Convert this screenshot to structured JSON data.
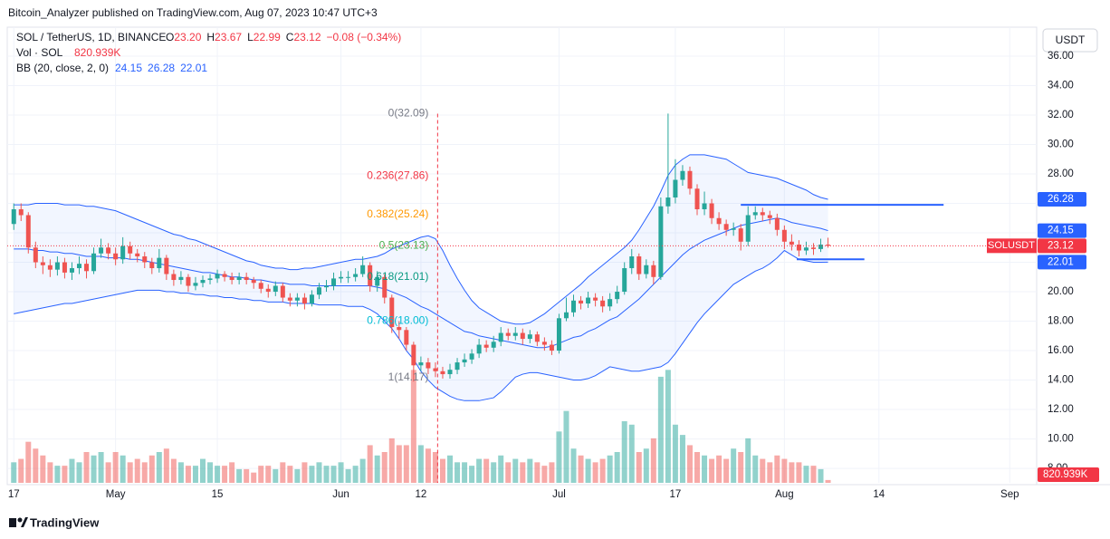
{
  "header": "Bitcoin_Analyzer published on TradingView.com, Aug 07, 2023 10:47 UTC+3",
  "footer": "TradingView",
  "currency_button": "USDT",
  "legend": {
    "symbol": "SOL / TetherUS, 1D, BINANCE",
    "ohlc": [
      {
        "key": "O",
        "text": "23.20"
      },
      {
        "key": "H",
        "text": "23.67"
      },
      {
        "key": "L",
        "text": "22.99"
      },
      {
        "key": "C",
        "text": "23.12"
      }
    ],
    "change": "−0.08 (−0.34%)",
    "volume_name": "Vol · SOL",
    "volume_text": "820.939K",
    "bb_name": "BB (20, close, 2, 0)",
    "bb_values": [
      "24.15",
      "26.28",
      "22.01"
    ]
  },
  "chart_data": {
    "type": "candlestick",
    "up_color": "#26a69a",
    "down_color": "#ef5350",
    "xlim": [
      -0.9,
      140.7
    ],
    "xticks": [
      {
        "value": 0,
        "label": "17"
      },
      {
        "value": 14,
        "label": "May"
      },
      {
        "value": 28,
        "label": "15"
      },
      {
        "value": 45,
        "label": "Jun"
      },
      {
        "value": 56,
        "label": "12"
      },
      {
        "value": 75,
        "label": "Jul"
      },
      {
        "value": 91,
        "label": "17"
      },
      {
        "value": 106,
        "label": "Aug"
      },
      {
        "value": 119,
        "label": "14"
      },
      {
        "value": 137,
        "label": "Sep"
      }
    ],
    "ylim": [
      7.02,
      37.66
    ],
    "yticks": [
      {
        "value": 8,
        "label": "8.00"
      },
      {
        "value": 10,
        "label": "10.00"
      },
      {
        "value": 12,
        "label": "12.00"
      },
      {
        "value": 14,
        "label": "14.00"
      },
      {
        "value": 16,
        "label": "16.00"
      },
      {
        "value": 18,
        "label": "18.00"
      },
      {
        "value": 20,
        "label": "20.00"
      },
      {
        "value": 22,
        "label": "22.00"
      },
      {
        "value": 24,
        "label": "24.00"
      },
      {
        "value": 26,
        "label": "26.00"
      },
      {
        "value": 28,
        "label": "28.00"
      },
      {
        "value": 30,
        "label": "30.00"
      },
      {
        "value": 32,
        "label": "32.00"
      },
      {
        "value": 34,
        "label": "34.00"
      },
      {
        "value": 36,
        "label": "36.00"
      }
    ],
    "grid": true,
    "open": [
      24.6,
      25.6,
      25.2,
      23.0,
      22.0,
      21.8,
      21.5,
      22.0,
      21.3,
      21.6,
      21.9,
      21.4,
      22.6,
      23.0,
      22.6,
      22.2,
      23.1,
      22.6,
      22.4,
      22.0,
      21.6,
      22.3,
      21.2,
      20.8,
      21.0,
      20.4,
      20.6,
      20.8,
      20.9,
      21.2,
      21.0,
      20.8,
      21.0,
      20.8,
      20.6,
      20.2,
      20.0,
      20.4,
      19.6,
      19.4,
      19.6,
      19.2,
      19.8,
      20.3,
      20.4,
      20.9,
      21.0,
      21.0,
      21.2,
      21.8,
      20.4,
      21.0,
      19.6,
      17.6,
      17.4,
      16.4,
      15.0,
      15.2,
      14.8,
      14.6,
      14.4,
      14.7,
      15.2,
      15.4,
      15.8,
      16.4,
      16.2,
      16.6,
      17.2,
      17.0,
      17.2,
      16.8,
      17.1,
      16.6,
      16.4,
      16.0,
      18.2,
      18.6,
      19.4,
      19.2,
      19.6,
      19.4,
      19.0,
      19.5,
      20.0,
      21.6,
      22.4,
      21.2,
      21.8,
      21.0,
      25.8,
      26.4,
      27.6,
      28.2,
      27.0,
      25.6,
      26.0,
      25.0,
      24.6,
      24.2,
      24.3,
      23.4,
      25.2,
      25.4,
      25.2,
      25.0,
      24.2,
      23.4,
      23.2,
      22.8,
      23.0,
      22.9,
      23.2
    ],
    "high": [
      26.0,
      26.0,
      25.4,
      23.4,
      22.4,
      22.2,
      22.4,
      22.3,
      22.0,
      22.4,
      22.2,
      23.0,
      23.6,
      23.3,
      23.0,
      23.7,
      23.4,
      22.9,
      22.7,
      22.3,
      22.9,
      22.5,
      21.5,
      21.4,
      21.2,
      21.0,
      21.1,
      21.2,
      21.5,
      21.4,
      21.3,
      21.3,
      21.3,
      21.0,
      20.8,
      20.5,
      20.7,
      20.6,
      19.9,
      19.9,
      19.9,
      20.1,
      20.6,
      20.8,
      21.3,
      21.4,
      21.4,
      21.6,
      22.4,
      22.0,
      21.4,
      21.2,
      19.8,
      18.0,
      17.6,
      16.6,
      15.6,
      15.5,
      15.2,
      14.9,
      15.1,
      15.5,
      15.8,
      16.1,
      16.8,
      16.7,
      17.0,
      17.6,
      17.5,
      17.6,
      17.5,
      17.4,
      17.3,
      16.9,
      16.7,
      18.5,
      19.6,
      19.8,
      19.7,
      20.0,
      19.9,
      19.7,
      19.9,
      20.4,
      22.0,
      22.9,
      22.6,
      22.2,
      22.1,
      26.4,
      32.1,
      29.0,
      28.6,
      28.5,
      27.3,
      26.8,
      26.3,
      25.4,
      24.9,
      24.7,
      24.6,
      25.8,
      25.8,
      25.7,
      25.5,
      25.3,
      24.5,
      23.9,
      23.5,
      23.4,
      23.3,
      23.6,
      23.67
    ],
    "low": [
      24.2,
      24.8,
      22.6,
      21.6,
      21.2,
      21.0,
      21.1,
      20.9,
      20.8,
      21.2,
      20.9,
      21.2,
      22.3,
      22.2,
      21.8,
      21.9,
      22.2,
      22.0,
      21.6,
      21.2,
      21.3,
      20.8,
      20.4,
      20.5,
      20.0,
      20.1,
      20.3,
      20.5,
      20.6,
      20.7,
      20.5,
      20.5,
      20.5,
      20.2,
      19.9,
      19.6,
      19.7,
      19.3,
      19.0,
      19.0,
      18.8,
      19.0,
      19.5,
      20.0,
      20.1,
      20.6,
      20.6,
      20.7,
      21.0,
      20.0,
      20.0,
      19.2,
      17.2,
      16.8,
      16.0,
      13.9,
      14.6,
      14.4,
      14.2,
      14.1,
      14.1,
      14.4,
      14.9,
      15.1,
      15.5,
      15.9,
      15.9,
      16.3,
      16.7,
      16.7,
      16.4,
      16.5,
      16.3,
      16.0,
      15.7,
      15.8,
      18.0,
      18.3,
      18.8,
      18.9,
      19.0,
      18.6,
      18.7,
      19.2,
      19.8,
      21.2,
      20.8,
      20.9,
      20.5,
      20.8,
      25.3,
      26.0,
      27.2,
      26.6,
      25.2,
      25.2,
      24.6,
      24.2,
      23.8,
      23.8,
      22.8,
      23.1,
      24.9,
      24.8,
      24.6,
      23.8,
      22.9,
      22.8,
      22.4,
      22.5,
      22.5,
      22.7,
      22.99
    ],
    "close": [
      25.6,
      25.2,
      23.0,
      22.0,
      21.8,
      21.5,
      22.0,
      21.3,
      21.6,
      21.9,
      21.4,
      22.6,
      23.0,
      22.6,
      22.2,
      23.1,
      22.6,
      22.4,
      22.0,
      21.6,
      22.3,
      21.2,
      20.8,
      21.0,
      20.4,
      20.6,
      20.8,
      20.9,
      21.2,
      21.0,
      20.8,
      21.0,
      20.8,
      20.6,
      20.2,
      20.0,
      20.4,
      19.6,
      19.4,
      19.6,
      19.2,
      19.8,
      20.3,
      20.4,
      20.9,
      21.0,
      21.0,
      21.2,
      21.8,
      20.4,
      21.0,
      19.6,
      17.6,
      17.4,
      16.4,
      15.0,
      15.2,
      14.8,
      14.6,
      14.4,
      14.7,
      15.2,
      15.4,
      15.8,
      16.4,
      16.2,
      16.6,
      17.2,
      17.0,
      17.2,
      16.8,
      17.1,
      16.6,
      16.4,
      16.0,
      18.2,
      18.6,
      19.4,
      19.2,
      19.6,
      19.4,
      19.0,
      19.5,
      20.0,
      21.6,
      22.4,
      21.2,
      21.8,
      21.0,
      25.8,
      26.4,
      27.6,
      28.2,
      27.0,
      25.6,
      26.0,
      25.0,
      24.6,
      24.2,
      24.3,
      23.4,
      25.2,
      25.4,
      25.2,
      25.0,
      24.2,
      23.4,
      23.2,
      22.8,
      23.0,
      22.9,
      23.2,
      23.12
    ],
    "volume": [
      6000000,
      7000000,
      12000000,
      10000000,
      8000000,
      6000000,
      5000000,
      5000000,
      7000000,
      6000000,
      9000000,
      8000000,
      9000000,
      6000000,
      9000000,
      8000000,
      6000000,
      7000000,
      6000000,
      8000000,
      9000000,
      10000000,
      7000000,
      6000000,
      5000000,
      5000000,
      7000000,
      6000000,
      5000000,
      5000000,
      6000000,
      4000000,
      4000000,
      3000000,
      5000000,
      5000000,
      4000000,
      6000000,
      5000000,
      4000000,
      6000000,
      5000000,
      6000000,
      5000000,
      5000000,
      6000000,
      4000000,
      5000000,
      7000000,
      11000000,
      8000000,
      9000000,
      13000000,
      11000000,
      11000000,
      33000000,
      11000000,
      10000000,
      9000000,
      7000000,
      8000000,
      6000000,
      6000000,
      5000000,
      7000000,
      7000000,
      6000000,
      8000000,
      6000000,
      7000000,
      6000000,
      7000000,
      6000000,
      5000000,
      6000000,
      15000000,
      21000000,
      10000000,
      8000000,
      7000000,
      6000000,
      7000000,
      8000000,
      9000000,
      18000000,
      17000000,
      9000000,
      10000000,
      13000000,
      31000000,
      33000000,
      17000000,
      14000000,
      11000000,
      9000000,
      8000000,
      7000000,
      8000000,
      7000000,
      10000000,
      9000000,
      13000000,
      8000000,
      7000000,
      6000000,
      8000000,
      7000000,
      6000000,
      6000000,
      5000000,
      5000000,
      4000000,
      820939
    ],
    "vlim": [
      0,
      45000000
    ],
    "volume_label": "820.939K",
    "bands": {
      "color": "#2962ff",
      "series": [
        {
          "values": [
            25.9,
            25.9,
            25.9,
            26.0,
            26.0,
            26.0,
            26.0,
            25.9,
            25.9,
            25.9,
            25.8,
            25.8,
            25.7,
            25.6,
            25.5,
            25.3,
            25.1,
            24.9,
            24.7,
            24.5,
            24.3,
            24.1,
            23.9,
            23.8,
            23.6,
            23.5,
            23.3,
            23.1,
            22.9,
            22.7,
            22.5,
            22.3,
            22.1,
            22.0,
            21.8,
            21.7,
            21.6,
            21.6,
            21.5,
            21.5,
            21.6,
            21.6,
            21.7,
            21.8,
            21.9,
            22.0,
            22.1,
            22.2,
            22.2,
            22.3,
            22.4,
            22.6,
            22.9,
            23.1,
            23.3,
            23.5,
            23.7,
            23.8,
            23.6,
            22.8,
            21.8,
            20.9,
            20.1,
            19.4,
            18.9,
            18.6,
            18.3,
            18.0,
            17.9,
            17.8,
            17.8,
            17.9,
            18.2,
            18.5,
            18.9,
            19.3,
            19.7,
            20.1,
            20.5,
            21.0,
            21.4,
            21.8,
            22.2,
            22.6,
            23.0,
            23.5,
            24.2,
            25.0,
            25.8,
            26.8,
            27.9,
            28.6,
            29.0,
            29.3,
            29.3,
            29.3,
            29.2,
            29.1,
            29.0,
            28.7,
            28.4,
            28.1,
            28.0,
            27.9,
            27.8,
            27.7,
            27.5,
            27.3,
            27.1,
            26.9,
            26.6,
            26.4,
            26.28
          ]
        },
        {
          "values": [
            22.9,
            22.9,
            22.9,
            22.8,
            22.8,
            22.7,
            22.7,
            22.6,
            22.6,
            22.5,
            22.4,
            22.4,
            22.4,
            22.3,
            22.3,
            22.3,
            22.2,
            22.2,
            22.1,
            22.0,
            21.9,
            21.8,
            21.7,
            21.6,
            21.5,
            21.4,
            21.3,
            21.3,
            21.2,
            21.1,
            21.0,
            21.0,
            20.9,
            20.8,
            20.8,
            20.7,
            20.6,
            20.6,
            20.5,
            20.5,
            20.5,
            20.4,
            20.4,
            20.4,
            20.4,
            20.4,
            20.4,
            20.4,
            20.4,
            20.4,
            20.3,
            20.2,
            20.0,
            19.8,
            19.6,
            19.3,
            19.0,
            18.8,
            18.5,
            18.2,
            17.9,
            17.6,
            17.3,
            17.2,
            17.0,
            16.9,
            16.8,
            16.7,
            16.6,
            16.5,
            16.4,
            16.3,
            16.2,
            16.2,
            16.3,
            16.5,
            16.7,
            16.9,
            17.0,
            17.3,
            17.5,
            17.8,
            18.1,
            18.3,
            18.7,
            19.1,
            19.5,
            20.0,
            20.5,
            21.0,
            21.5,
            22.0,
            22.5,
            22.9,
            23.2,
            23.5,
            23.7,
            23.9,
            24.1,
            24.3,
            24.5,
            24.6,
            24.7,
            24.8,
            24.9,
            25.0,
            24.9,
            24.7,
            24.6,
            24.5,
            24.4,
            24.3,
            24.15
          ]
        },
        {
          "values": [
            18.5,
            18.6,
            18.7,
            18.8,
            18.9,
            19.0,
            19.1,
            19.2,
            19.2,
            19.3,
            19.4,
            19.5,
            19.6,
            19.7,
            19.8,
            19.9,
            20.0,
            20.1,
            20.1,
            20.1,
            20.1,
            20.0,
            20.0,
            19.9,
            19.9,
            19.8,
            19.8,
            19.7,
            19.7,
            19.6,
            19.6,
            19.5,
            19.5,
            19.4,
            19.4,
            19.3,
            19.3,
            19.3,
            19.2,
            19.2,
            19.2,
            19.2,
            19.1,
            19.1,
            19.1,
            19.1,
            19.0,
            19.0,
            19.0,
            18.8,
            18.5,
            18.0,
            17.5,
            16.8,
            16.0,
            15.4,
            14.6,
            14.0,
            13.5,
            13.2,
            12.9,
            12.7,
            12.6,
            12.6,
            12.6,
            12.7,
            12.8,
            13.2,
            13.7,
            14.2,
            14.4,
            14.5,
            14.5,
            14.4,
            14.3,
            14.2,
            14.1,
            14.0,
            14.0,
            14.1,
            14.3,
            14.6,
            14.9,
            14.8,
            14.7,
            14.6,
            14.6,
            14.7,
            14.8,
            14.9,
            15.2,
            15.8,
            16.5,
            17.2,
            17.9,
            18.5,
            19.0,
            19.5,
            20.0,
            20.5,
            20.8,
            21.1,
            21.4,
            21.6,
            21.9,
            22.3,
            22.8,
            22.5,
            22.2,
            22.1,
            22.0,
            22.0,
            22.01
          ]
        }
      ]
    },
    "fib_anchor_x": 58.3,
    "fib_levels": [
      {
        "value": 32.09,
        "label": "0(32.09)",
        "color": "#787b86"
      },
      {
        "value": 27.86,
        "label": "0.236(27.86)",
        "color": "#f23645"
      },
      {
        "value": 25.24,
        "label": "0.382(25.24)",
        "color": "#ff9800"
      },
      {
        "value": 23.13,
        "label": "0.5(23.13)",
        "color": "#4caf50"
      },
      {
        "value": 21.01,
        "label": "0.618(21.01)",
        "color": "#089981"
      },
      {
        "value": 18.0,
        "label": "0.786(18.00)",
        "color": "#00bcd4"
      },
      {
        "value": 14.17,
        "label": "1(14.17)",
        "color": "#787b86"
      }
    ],
    "hlines": [
      {
        "value": 25.9,
        "from": 100,
        "to": 127.9,
        "color": "#2962ff"
      },
      {
        "value": 22.2,
        "from": 107.7,
        "to": 117,
        "color": "#2962ff"
      }
    ],
    "price_tags": [
      {
        "label": "26.28",
        "value": 26.28,
        "color": "#2962ff"
      },
      {
        "label": "24.15",
        "value": 24.15,
        "color": "#2962ff"
      },
      {
        "name": "SOLUSDT",
        "label": "23.12",
        "value": 23.12,
        "color": "#f23645"
      },
      {
        "label": "22.01",
        "value": 22.01,
        "color": "#2962ff"
      }
    ]
  }
}
